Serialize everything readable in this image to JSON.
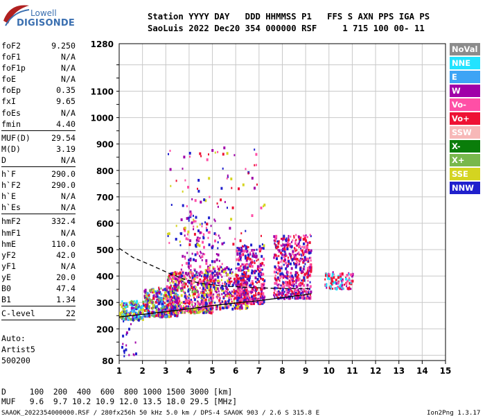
{
  "logo": {
    "line1": "Lowell",
    "line2": "DIGISONDE"
  },
  "header": {
    "line1": "Station YYYY DAY   DDD HHMMSS P1   FFS S AXN PPS IGA PS",
    "line2": "SaoLuis 2022 Dec20 354 000000 RSF     1 715 100 00- 11"
  },
  "params": [
    {
      "group": [
        {
          "k": "foF2",
          "v": "9.250"
        },
        {
          "k": "foF1",
          "v": "N/A"
        },
        {
          "k": "foF1p",
          "v": "N/A"
        },
        {
          "k": "foE",
          "v": "N/A"
        },
        {
          "k": "foEp",
          "v": "0.35"
        },
        {
          "k": "fxI",
          "v": "9.65"
        },
        {
          "k": "foEs",
          "v": "N/A"
        },
        {
          "k": "fmin",
          "v": "4.40"
        }
      ]
    },
    {
      "group": [
        {
          "k": "MUF(D)",
          "v": "29.54"
        },
        {
          "k": "M(D)",
          "v": "3.19"
        },
        {
          "k": "D",
          "v": "N/A"
        }
      ]
    },
    {
      "group": [
        {
          "k": "h`F",
          "v": "290.0"
        },
        {
          "k": "h`F2",
          "v": "290.0"
        },
        {
          "k": "h`E",
          "v": "N/A"
        },
        {
          "k": "h`Es",
          "v": "N/A"
        }
      ]
    },
    {
      "group": [
        {
          "k": "hmF2",
          "v": "332.4"
        },
        {
          "k": "hmF1",
          "v": "N/A"
        },
        {
          "k": "hmE",
          "v": "110.0"
        },
        {
          "k": "yF2",
          "v": "42.0"
        },
        {
          "k": "yF1",
          "v": "N/A"
        },
        {
          "k": "yE",
          "v": "20.0"
        },
        {
          "k": "B0",
          "v": "47.4"
        },
        {
          "k": "B1",
          "v": "1.34"
        }
      ]
    },
    {
      "group": [
        {
          "k": "C-level",
          "v": "22"
        }
      ]
    }
  ],
  "autoscale": {
    "line1": "Auto:",
    "line2": "Artist5",
    "line3": "500200"
  },
  "legend": [
    {
      "label": "NoVal",
      "color": "#8c8c8c"
    },
    {
      "label": "NNE",
      "color": "#22e3ff"
    },
    {
      "label": "E",
      "color": "#3da4f5"
    },
    {
      "label": "W",
      "color": "#a000a8"
    },
    {
      "label": "Vo-",
      "color": "#ff4fa6"
    },
    {
      "label": "Vo+",
      "color": "#ee1234"
    },
    {
      "label": "SSW",
      "color": "#f7b8b8"
    },
    {
      "label": "X-",
      "color": "#0a7d0a"
    },
    {
      "label": "X+",
      "color": "#78b84c"
    },
    {
      "label": "SSE",
      "color": "#d4d420"
    },
    {
      "label": "NNW",
      "color": "#2020cc"
    }
  ],
  "chart_data": {
    "type": "scatter",
    "title": "",
    "xlabel": "",
    "ylabel": "",
    "xlim": [
      1,
      15
    ],
    "ylim": [
      80,
      1280
    ],
    "xticks": [
      1,
      2,
      3,
      4,
      5,
      6,
      7,
      8,
      9,
      10,
      11,
      12,
      13,
      14,
      15
    ],
    "yticks": [
      80,
      200,
      300,
      400,
      500,
      600,
      700,
      800,
      900,
      1000,
      1100,
      1280
    ],
    "grid": true,
    "legend_position": "right",
    "traces": [
      {
        "name": "lower",
        "points": [
          [
            1.0,
            245
          ],
          [
            2.0,
            255
          ],
          [
            3.0,
            265
          ],
          [
            4.0,
            276
          ],
          [
            5.0,
            288
          ],
          [
            6.0,
            298
          ],
          [
            7.0,
            307
          ],
          [
            8.0,
            318
          ],
          [
            9.0,
            330
          ],
          [
            9.25,
            333
          ]
        ]
      },
      {
        "name": "upper",
        "points": [
          [
            1.0,
            505
          ],
          [
            1.6,
            470
          ],
          [
            2.4,
            440
          ],
          [
            3.2,
            408
          ],
          [
            3.8,
            388
          ],
          [
            4.5,
            372
          ],
          [
            5.5,
            362
          ],
          [
            6.5,
            357
          ],
          [
            7.5,
            354
          ],
          [
            8.5,
            352
          ],
          [
            9.25,
            352
          ]
        ]
      }
    ],
    "clusters": [
      {
        "x0": 1.0,
        "x1": 2.0,
        "y0": 240,
        "y1": 310,
        "n": 180,
        "colors": [
          "#a000a8",
          "#2020cc",
          "#d4d420",
          "#3da4f5",
          "#22e3ff",
          "#78b84c"
        ]
      },
      {
        "x0": 2.0,
        "x1": 3.5,
        "y0": 250,
        "y1": 360,
        "n": 380,
        "colors": [
          "#a000a8",
          "#2020cc",
          "#d4d420",
          "#78b84c",
          "#3da4f5",
          "#ee1234"
        ]
      },
      {
        "x0": 3.0,
        "x1": 5.0,
        "y0": 265,
        "y1": 420,
        "n": 480,
        "colors": [
          "#a000a8",
          "#2020cc",
          "#d4d420",
          "#ee1234",
          "#78b84c",
          "#ff4fa6"
        ]
      },
      {
        "x0": 4.5,
        "x1": 6.5,
        "y0": 280,
        "y1": 440,
        "n": 420,
        "colors": [
          "#a000a8",
          "#2020cc",
          "#ee1234",
          "#ff4fa6",
          "#d4d420"
        ]
      },
      {
        "x0": 6.0,
        "x1": 7.2,
        "y0": 300,
        "y1": 520,
        "n": 360,
        "colors": [
          "#ee1234",
          "#ff4fa6",
          "#a000a8",
          "#2020cc"
        ]
      },
      {
        "x0": 7.6,
        "x1": 9.2,
        "y0": 320,
        "y1": 560,
        "n": 520,
        "colors": [
          "#ee1234",
          "#ff4fa6",
          "#a000a8",
          "#2020cc"
        ]
      },
      {
        "x0": 9.8,
        "x1": 11.0,
        "y0": 355,
        "y1": 420,
        "n": 110,
        "colors": [
          "#ee1234",
          "#ff4fa6",
          "#a000a8",
          "#22e3ff"
        ]
      },
      {
        "x0": 3.6,
        "x1": 5.4,
        "y0": 400,
        "y1": 640,
        "n": 130,
        "colors": [
          "#a000a8",
          "#2020cc",
          "#ff4fa6"
        ]
      },
      {
        "x0": 3.0,
        "x1": 7.2,
        "y0": 520,
        "y1": 900,
        "n": 110,
        "colors": [
          "#a000a8",
          "#ff4fa6",
          "#ee1234",
          "#2020cc",
          "#d4d420"
        ]
      },
      {
        "x0": 1.0,
        "x1": 1.8,
        "y0": 100,
        "y1": 240,
        "n": 20,
        "colors": [
          "#a000a8",
          "#2020cc"
        ]
      }
    ]
  },
  "footer": {
    "line1": "D     100  200  400  600  800 1000 1500 3000 [km]",
    "line2": "MUF   9.6  9.7 10.2 10.9 12.0 13.5 18.0 29.5 [MHz]",
    "line3": "SAAOK_2022354000000.RSF / 280fx256h 50 kHz 5.0 km / DPS-4 SAAOK 903 / 2.6 S 315.8 E",
    "version": "Ion2Png 1.3.17"
  }
}
